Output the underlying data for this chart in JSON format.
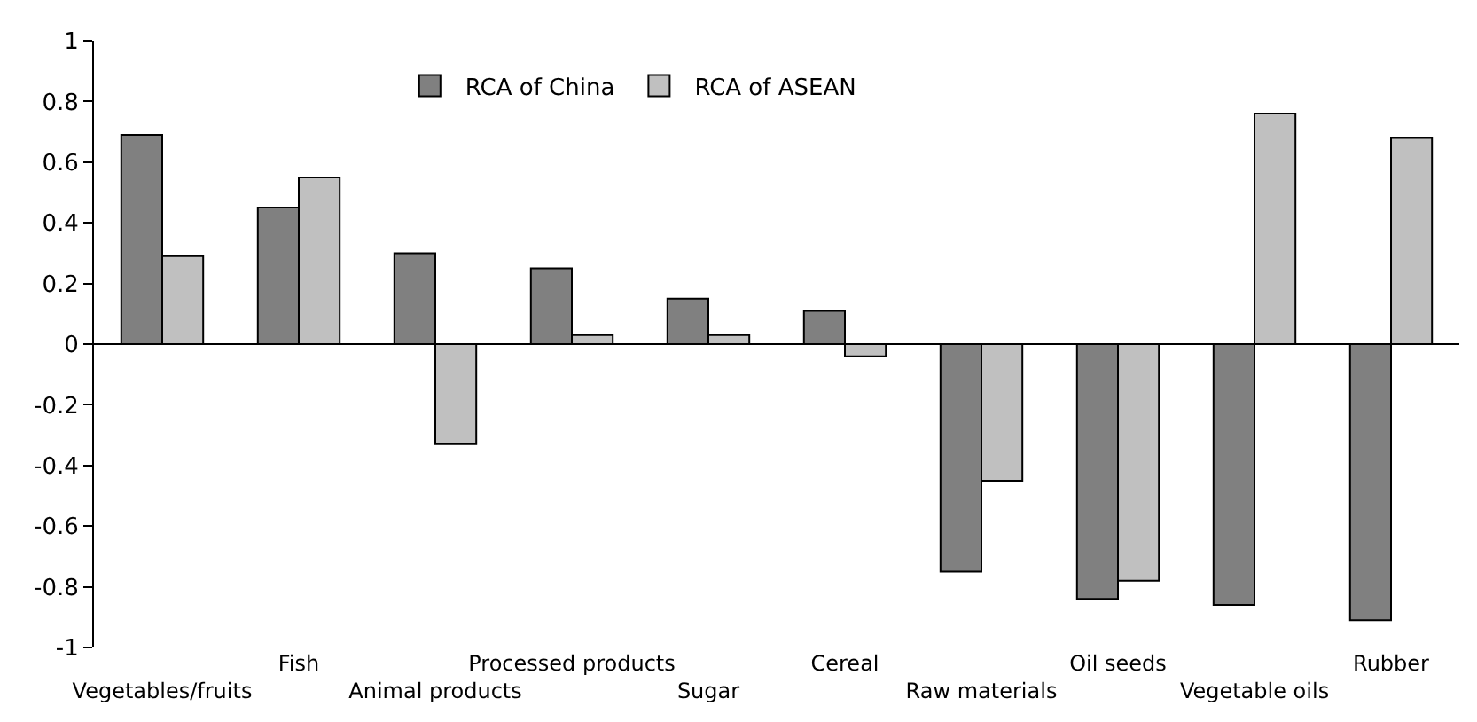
{
  "chart_data": {
    "type": "bar",
    "categories": [
      "Vegetables/fruits",
      "Fish",
      "Animal products",
      "Processed products",
      "Sugar",
      "Cereal",
      "Raw materials",
      "Oil seeds",
      "Vegetable oils",
      "Rubber"
    ],
    "series": [
      {
        "name": "RCA of China",
        "color": "#808080",
        "values": [
          0.69,
          0.45,
          0.3,
          0.25,
          0.15,
          0.11,
          -0.75,
          -0.84,
          -0.86,
          -0.91
        ]
      },
      {
        "name": "RCA of ASEAN",
        "color": "#c0c0c0",
        "values": [
          0.29,
          0.55,
          -0.33,
          0.03,
          0.03,
          -0.04,
          -0.45,
          -0.78,
          0.76,
          0.68
        ]
      }
    ],
    "ylim": [
      -1,
      1
    ],
    "yticks": [
      {
        "value": -1,
        "label": "-1"
      },
      {
        "value": -0.8,
        "label": "-0.8"
      },
      {
        "value": -0.6,
        "label": "-0.6"
      },
      {
        "value": -0.4,
        "label": "-0.4"
      },
      {
        "value": -0.2,
        "label": "-0.2"
      },
      0,
      0.2,
      0.4,
      0.6,
      0.8,
      1
    ],
    "legend": "top"
  }
}
